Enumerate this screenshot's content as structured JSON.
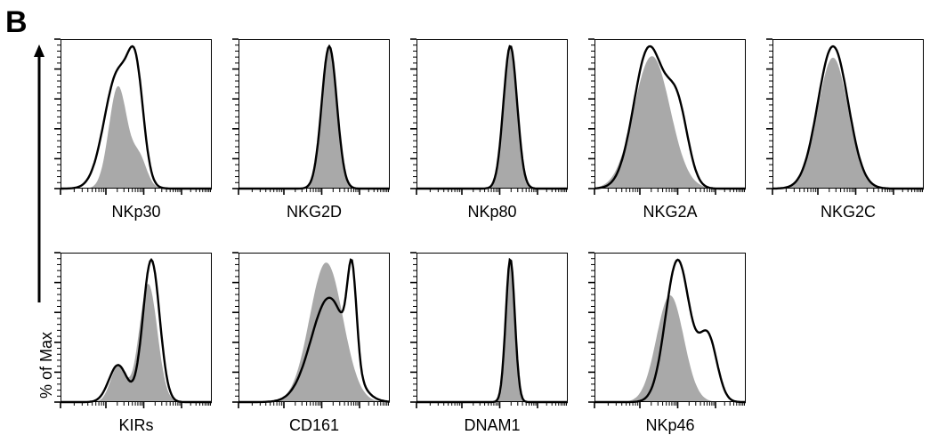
{
  "panel_letter": "B",
  "y_axis_label": "% of Max",
  "colors": {
    "filled": "#a9a9a9",
    "outline": "#000000",
    "axis": "#000000"
  },
  "chart_data": [
    {
      "type": "area",
      "title": "",
      "xlabel": "NKp30",
      "ylim": [
        0,
        100
      ],
      "series": [
        {
          "name": "",
          "mean": 0.38,
          "sd": 0.06,
          "shoulder": [
            {
              "mean": 0.52,
              "sd": 0.05,
              "h": 0.3
            }
          ],
          "peak": 0.72
        },
        {
          "name": "",
          "mean": 0.38,
          "sd": 0.09,
          "shoulder": [
            {
              "mean": 0.5,
              "sd": 0.05,
              "h": 0.75
            }
          ],
          "peak": 1.0
        }
      ]
    },
    {
      "type": "area",
      "title": "",
      "xlabel": "NKG2D",
      "ylim": [
        0,
        100
      ],
      "series": [
        {
          "name": "",
          "mean": 0.6,
          "sd": 0.05,
          "peak": 1.0
        },
        {
          "name": "",
          "mean": 0.6,
          "sd": 0.05,
          "peak": 1.0
        }
      ]
    },
    {
      "type": "area",
      "title": "",
      "xlabel": "NKp80",
      "ylim": [
        0,
        100
      ],
      "series": [
        {
          "name": "",
          "mean": 0.62,
          "sd": 0.045,
          "peak": 1.0
        },
        {
          "name": "",
          "mean": 0.62,
          "sd": 0.045,
          "peak": 1.0
        }
      ]
    },
    {
      "type": "area",
      "title": "",
      "xlabel": "NKG2A",
      "ylim": [
        0,
        100
      ],
      "series": [
        {
          "name": "",
          "mean": 0.38,
          "sd": 0.12,
          "peak": 0.93
        },
        {
          "name": "",
          "mean": 0.36,
          "sd": 0.1,
          "shoulder": [
            {
              "mean": 0.55,
              "sd": 0.07,
              "h": 0.52
            }
          ],
          "peak": 1.0
        }
      ]
    },
    {
      "type": "area",
      "title": "",
      "xlabel": "NKG2C",
      "ylim": [
        0,
        100
      ],
      "series": [
        {
          "name": "",
          "mean": 0.4,
          "sd": 0.1,
          "peak": 0.92
        },
        {
          "name": "",
          "mean": 0.4,
          "sd": 0.1,
          "peak": 1.0
        }
      ]
    },
    {
      "type": "area",
      "title": "",
      "xlabel": "KIRs",
      "ylim": [
        0,
        100
      ],
      "series": [
        {
          "name": "",
          "mean": 0.58,
          "sd": 0.06,
          "shoulder": [
            {
              "mean": 0.38,
              "sd": 0.05,
              "h": 0.3
            }
          ],
          "peak": 0.83
        },
        {
          "name": "",
          "mean": 0.6,
          "sd": 0.055,
          "shoulder": [
            {
              "mean": 0.38,
              "sd": 0.06,
              "h": 0.26
            }
          ],
          "peak": 1.0
        }
      ]
    },
    {
      "type": "area",
      "title": "",
      "xlabel": "CD161",
      "ylim": [
        0,
        100
      ],
      "series": [
        {
          "name": "",
          "mean": 0.58,
          "sd": 0.11,
          "peak": 0.98
        },
        {
          "name": "",
          "mean": 0.6,
          "sd": 0.12,
          "shoulder": [
            {
              "mean": 0.75,
              "sd": 0.03,
              "h": 0.9
            }
          ],
          "peak": 1.0
        }
      ]
    },
    {
      "type": "area",
      "title": "",
      "xlabel": "DNAM1",
      "ylim": [
        0,
        100
      ],
      "series": [
        {
          "name": "",
          "mean": 0.62,
          "sd": 0.03,
          "peak": 1.0
        },
        {
          "name": "",
          "mean": 0.62,
          "sd": 0.03,
          "peak": 1.0
        }
      ]
    },
    {
      "type": "area",
      "title": "",
      "xlabel": "NKp46",
      "ylim": [
        0,
        100
      ],
      "series": [
        {
          "name": "",
          "mean": 0.5,
          "sd": 0.09,
          "peak": 0.75
        },
        {
          "name": "",
          "mean": 0.55,
          "sd": 0.08,
          "shoulder": [
            {
              "mean": 0.75,
              "sd": 0.06,
              "h": 0.45
            }
          ],
          "peak": 1.0
        }
      ]
    }
  ]
}
